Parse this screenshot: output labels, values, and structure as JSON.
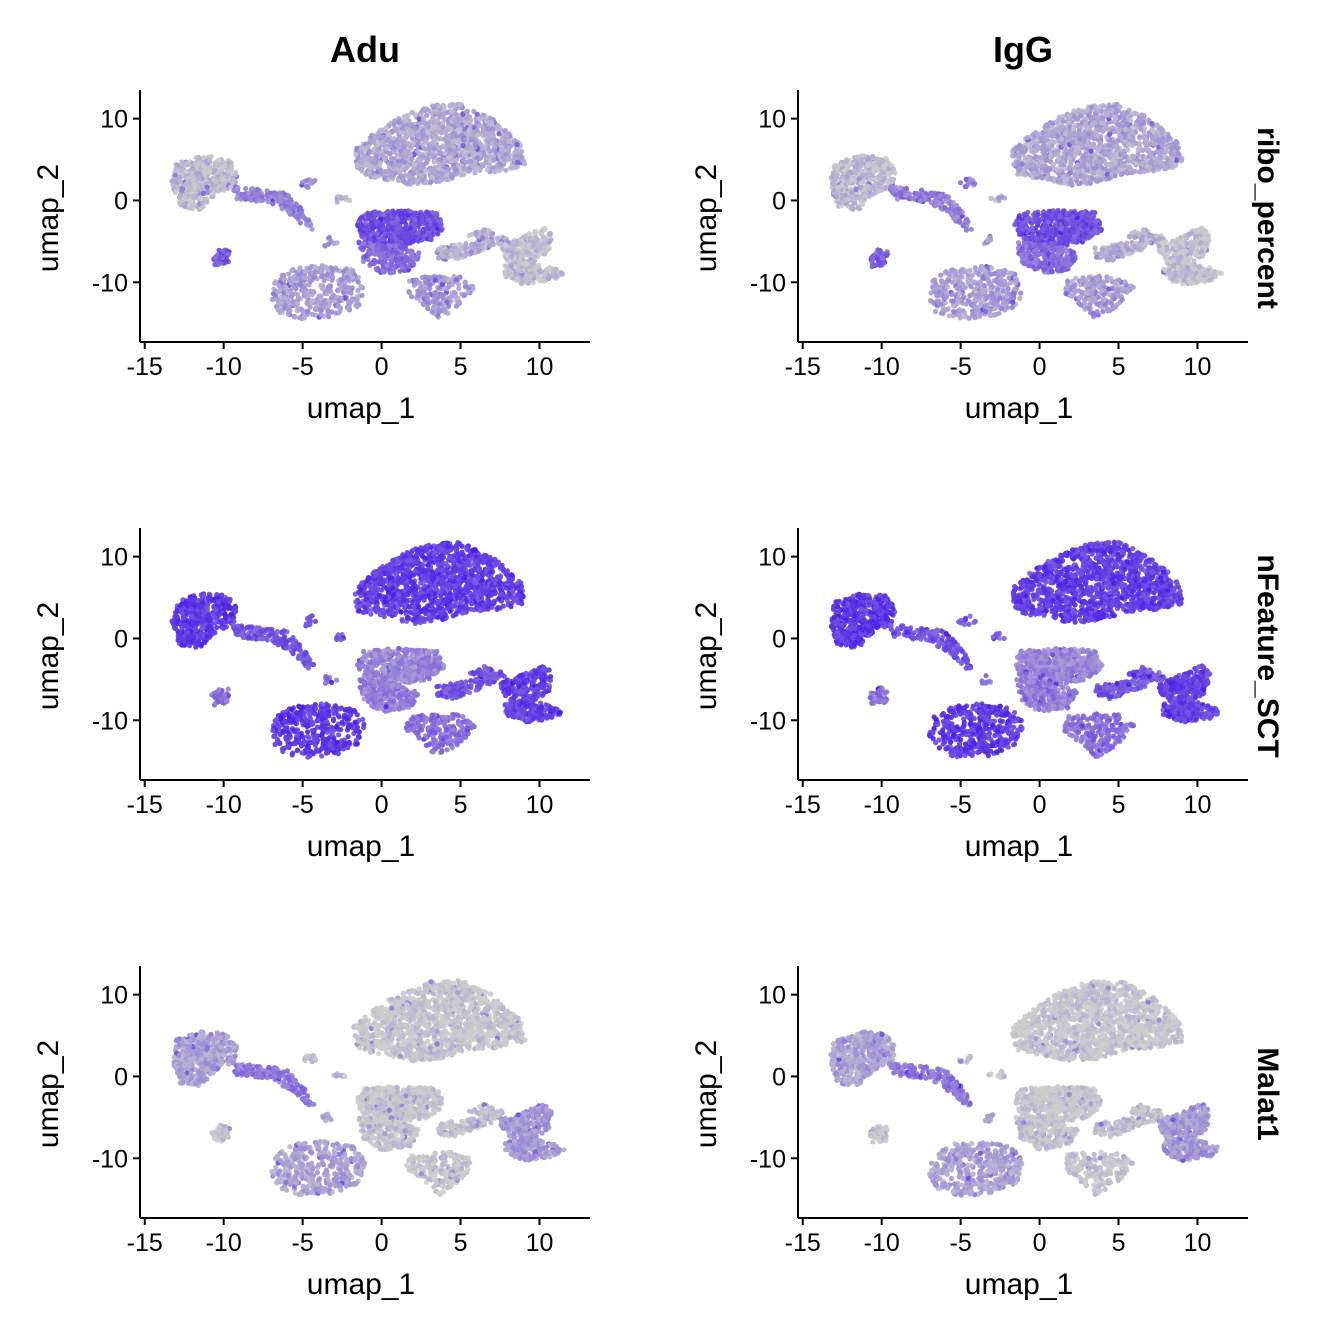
{
  "chart_data": {
    "type": "scatter",
    "columns": [
      "Adu",
      "IgG"
    ],
    "rows": [
      "ribo_percent",
      "nFeature_SCT",
      "Malat1"
    ],
    "xlabel": "umap_1",
    "ylabel": "umap_2",
    "xlim": [
      -15.3,
      13.2
    ],
    "ylim": [
      -17.3,
      13.5
    ],
    "x_ticks": [
      -15,
      -10,
      -5,
      0,
      5,
      10
    ],
    "x_tick_labels": [
      "-15",
      "-10",
      "-5",
      "0",
      "5",
      "10"
    ],
    "y_ticks": [
      -10,
      0,
      10
    ],
    "y_tick_labels": [
      "-10",
      "0",
      "10"
    ],
    "grid": false,
    "legend": "none",
    "colors": {
      "low": "#cccccc",
      "high": "#4b1fe8"
    },
    "clusters": [
      {
        "name": "large-upper",
        "poly": [
          [
            -1.5,
            3.2
          ],
          [
            -1.8,
            6
          ],
          [
            -0.5,
            8.2
          ],
          [
            1.2,
            10.2
          ],
          [
            3.0,
            11.6
          ],
          [
            5.0,
            11.8
          ],
          [
            7.0,
            10
          ],
          [
            8.8,
            7
          ],
          [
            9.1,
            4.3
          ],
          [
            7.5,
            3.5
          ],
          [
            5.5,
            3.3
          ],
          [
            3.8,
            2.2
          ],
          [
            2.0,
            1.8
          ],
          [
            0.5,
            2.5
          ]
        ],
        "n": 1300
      },
      {
        "name": "left-blob",
        "poly": [
          [
            -13.3,
            2.2
          ],
          [
            -13.0,
            4.5
          ],
          [
            -11.5,
            5.5
          ],
          [
            -9.8,
            5.3
          ],
          [
            -9.1,
            3.6
          ],
          [
            -9.3,
            1.8
          ],
          [
            -10.5,
            0.8
          ],
          [
            -11.5,
            -1.2
          ],
          [
            -12.8,
            -0.8
          ]
        ],
        "n": 450
      },
      {
        "name": "left-tail",
        "poly": [
          [
            -9.6,
            1.8
          ],
          [
            -8,
            1.4
          ],
          [
            -6,
            0.9
          ],
          [
            -5,
            -1.1
          ],
          [
            -4.2,
            -3.5
          ],
          [
            -4.6,
            -3.8
          ],
          [
            -5.6,
            -2
          ],
          [
            -7,
            -0.3
          ],
          [
            -9.2,
            0.2
          ]
        ],
        "n": 160
      },
      {
        "name": "small-isolated",
        "poly": [
          [
            -10.8,
            -6.8
          ],
          [
            -10.1,
            -5.8
          ],
          [
            -9.6,
            -6.3
          ],
          [
            -9.7,
            -7.8
          ],
          [
            -10.6,
            -8.2
          ]
        ],
        "n": 45
      },
      {
        "name": "tiny-1",
        "poly": [
          [
            -5.2,
            2.1
          ],
          [
            -4.4,
            2.8
          ],
          [
            -4.0,
            2.0
          ],
          [
            -4.8,
            1.5
          ]
        ],
        "n": 12
      },
      {
        "name": "tiny-2",
        "poly": [
          [
            -3.3,
            0.3
          ],
          [
            -2.4,
            0.7
          ],
          [
            -2.0,
            0.0
          ],
          [
            -2.8,
            -0.3
          ]
        ],
        "n": 10
      },
      {
        "name": "tiny-3",
        "poly": [
          [
            -3.8,
            -4.8
          ],
          [
            -3.0,
            -4.3
          ],
          [
            -2.8,
            -5.3
          ],
          [
            -3.6,
            -5.6
          ]
        ],
        "n": 8
      },
      {
        "name": "center-block",
        "poly": [
          [
            -1.2,
            -1.5
          ],
          [
            1.0,
            -1.2
          ],
          [
            3.5,
            -1.4
          ],
          [
            4.0,
            -3.5
          ],
          [
            3.0,
            -5.0
          ],
          [
            0.5,
            -6.0
          ],
          [
            -1.0,
            -5.5
          ],
          [
            -1.6,
            -3.0
          ]
        ],
        "n": 500
      },
      {
        "name": "center-stem",
        "poly": [
          [
            -1.5,
            -5.0
          ],
          [
            1.0,
            -5.5
          ],
          [
            2.5,
            -6.5
          ],
          [
            1.8,
            -8.5
          ],
          [
            0.0,
            -9.0
          ],
          [
            -1.2,
            -7.5
          ]
        ],
        "n": 220
      },
      {
        "name": "lower-ring",
        "poly": [
          [
            -7.0,
            -12.0
          ],
          [
            -6.8,
            -9.7
          ],
          [
            -5.5,
            -8.2
          ],
          [
            -3.5,
            -7.9
          ],
          [
            -1.8,
            -8.5
          ],
          [
            -1.0,
            -10.3
          ],
          [
            -1.4,
            -13.0
          ],
          [
            -3.0,
            -14.3
          ],
          [
            -5.2,
            -14.6
          ],
          [
            -6.6,
            -13.6
          ]
        ],
        "n": 380
      },
      {
        "name": "bottom-right",
        "poly": [
          [
            1.8,
            -9.5
          ],
          [
            3.5,
            -9.2
          ],
          [
            5.0,
            -9.3
          ],
          [
            6.0,
            -10.6
          ],
          [
            5.0,
            -12.8
          ],
          [
            3.6,
            -14.6
          ],
          [
            2.4,
            -12.5
          ],
          [
            1.5,
            -11.2
          ]
        ],
        "n": 200
      },
      {
        "name": "right-1",
        "poly": [
          [
            3.5,
            -5.8
          ],
          [
            6.0,
            -5.0
          ],
          [
            7.5,
            -4.0
          ],
          [
            8.0,
            -4.8
          ],
          [
            6.5,
            -6.0
          ],
          [
            4.5,
            -7.4
          ],
          [
            3.5,
            -7.0
          ]
        ],
        "n": 150
      },
      {
        "name": "right-2",
        "poly": [
          [
            7.5,
            -5.2
          ],
          [
            8.5,
            -4.8
          ],
          [
            10.3,
            -3.2
          ],
          [
            10.8,
            -4.2
          ],
          [
            10.6,
            -6.5
          ],
          [
            9.5,
            -7.8
          ],
          [
            8.5,
            -8.5
          ],
          [
            7.6,
            -6.6
          ]
        ],
        "n": 220
      },
      {
        "name": "right-3",
        "poly": [
          [
            7.8,
            -8.0
          ],
          [
            9.5,
            -7.6
          ],
          [
            11.0,
            -8.3
          ],
          [
            11.6,
            -9.0
          ],
          [
            10.8,
            -9.8
          ],
          [
            9.0,
            -10.3
          ],
          [
            7.8,
            -9.3
          ]
        ],
        "n": 160
      },
      {
        "name": "right-thin",
        "poly": [
          [
            5.5,
            -4.3
          ],
          [
            6.5,
            -3.4
          ],
          [
            7.2,
            -4.0
          ],
          [
            6.2,
            -4.8
          ]
        ],
        "n": 30
      }
    ],
    "panels": [
      {
        "column": "Adu",
        "row": "ribo_percent",
        "intensity": [
          0.22,
          0.1,
          0.45,
          0.65,
          0.4,
          0.2,
          0.3,
          0.72,
          0.55,
          0.28,
          0.3,
          0.15,
          0.06,
          0.08,
          0.2
        ]
      },
      {
        "column": "IgG",
        "row": "ribo_percent",
        "intensity": [
          0.22,
          0.1,
          0.45,
          0.65,
          0.4,
          0.2,
          0.3,
          0.72,
          0.55,
          0.28,
          0.3,
          0.15,
          0.06,
          0.08,
          0.2
        ]
      },
      {
        "column": "Adu",
        "row": "nFeature_SCT",
        "intensity": [
          0.82,
          0.85,
          0.7,
          0.5,
          0.7,
          0.6,
          0.5,
          0.4,
          0.45,
          0.85,
          0.55,
          0.7,
          0.82,
          0.8,
          0.7
        ]
      },
      {
        "column": "IgG",
        "row": "nFeature_SCT",
        "intensity": [
          0.82,
          0.85,
          0.7,
          0.5,
          0.7,
          0.6,
          0.5,
          0.4,
          0.45,
          0.85,
          0.55,
          0.7,
          0.82,
          0.8,
          0.7
        ]
      },
      {
        "column": "Adu",
        "row": "Malat1",
        "intensity": [
          0.02,
          0.25,
          0.5,
          0.05,
          0.1,
          0.05,
          0.3,
          0.01,
          0.04,
          0.25,
          0.03,
          0.08,
          0.3,
          0.3,
          0.1
        ]
      },
      {
        "column": "IgG",
        "row": "Malat1",
        "intensity": [
          0.02,
          0.25,
          0.5,
          0.05,
          0.1,
          0.05,
          0.3,
          0.01,
          0.04,
          0.25,
          0.03,
          0.08,
          0.3,
          0.3,
          0.1
        ]
      }
    ]
  }
}
